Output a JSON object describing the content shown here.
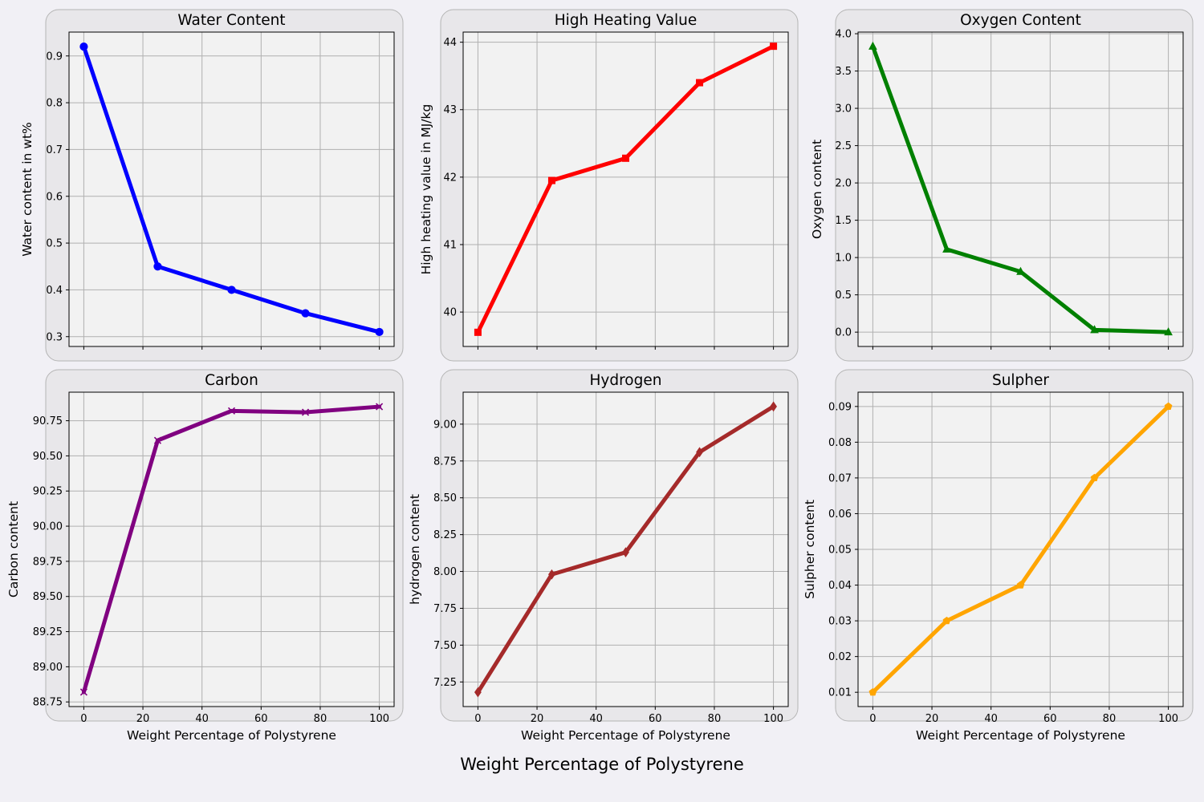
{
  "figure": {
    "suptitle": "Weight Percentage of Polystyrene"
  },
  "chart_data": [
    {
      "type": "line",
      "title": "Water Content",
      "xlabel": "",
      "ylabel": "Water content in wt%",
      "x": [
        0,
        25,
        50,
        75,
        100
      ],
      "series": [
        {
          "values": [
            0.92,
            0.45,
            0.4,
            0.35,
            0.31
          ],
          "color": "#0000ff",
          "marker": "circle"
        }
      ],
      "xlim": [
        -5,
        105
      ],
      "ylim": [
        0.279,
        0.951
      ],
      "xticks": [
        0,
        20,
        40,
        60,
        80,
        100
      ],
      "yticks": [
        0.3,
        0.4,
        0.5,
        0.6,
        0.7,
        0.8,
        0.9
      ],
      "ytick_labels": [
        "0.3",
        "0.4",
        "0.5",
        "0.6",
        "0.7",
        "0.8",
        "0.9"
      ],
      "show_xtick_labels": false,
      "grid": true
    },
    {
      "type": "line",
      "title": "High Heating Value",
      "xlabel": "",
      "ylabel": "High heating value in MJ/kg",
      "x": [
        0,
        25,
        50,
        75,
        100
      ],
      "series": [
        {
          "values": [
            39.7,
            41.95,
            42.28,
            43.4,
            43.94
          ],
          "color": "#ff0000",
          "marker": "square"
        }
      ],
      "xlim": [
        -5,
        105
      ],
      "ylim": [
        39.49,
        44.15
      ],
      "xticks": [
        0,
        20,
        40,
        60,
        80,
        100
      ],
      "yticks": [
        40,
        41,
        42,
        43,
        44
      ],
      "ytick_labels": [
        "40",
        "41",
        "42",
        "43",
        "44"
      ],
      "show_xtick_labels": false,
      "grid": true
    },
    {
      "type": "line",
      "title": "Oxygen Content",
      "xlabel": "",
      "ylabel": "Oxygen content",
      "x": [
        0,
        25,
        50,
        75,
        100
      ],
      "series": [
        {
          "values": [
            3.83,
            1.11,
            0.81,
            0.03,
            0.0
          ],
          "color": "#008000",
          "marker": "triangle"
        }
      ],
      "xlim": [
        -5,
        105
      ],
      "ylim": [
        -0.192,
        4.022
      ],
      "xticks": [
        0,
        20,
        40,
        60,
        80,
        100
      ],
      "yticks": [
        0.0,
        0.5,
        1.0,
        1.5,
        2.0,
        2.5,
        3.0,
        3.5,
        4.0
      ],
      "ytick_labels": [
        "0.0",
        "0.5",
        "1.0",
        "1.5",
        "2.0",
        "2.5",
        "3.0",
        "3.5",
        "4.0"
      ],
      "show_xtick_labels": false,
      "grid": true
    },
    {
      "type": "line",
      "title": "Carbon",
      "xlabel": "Weight Percentage of Polystyrene",
      "ylabel": "Carbon content",
      "x": [
        0,
        25,
        50,
        75,
        100
      ],
      "series": [
        {
          "values": [
            88.82,
            90.61,
            90.82,
            90.81,
            90.85
          ],
          "color": "#800080",
          "marker": "x"
        }
      ],
      "xlim": [
        -5,
        105
      ],
      "ylim": [
        88.717,
        90.953
      ],
      "xticks": [
        0,
        20,
        40,
        60,
        80,
        100
      ],
      "xtick_labels": [
        "0",
        "20",
        "40",
        "60",
        "80",
        "100"
      ],
      "yticks": [
        88.75,
        89.0,
        89.25,
        89.5,
        89.75,
        90.0,
        90.25,
        90.5,
        90.75
      ],
      "ytick_labels": [
        "88.75",
        "89.00",
        "89.25",
        "89.50",
        "89.75",
        "90.00",
        "90.25",
        "90.50",
        "90.75"
      ],
      "show_xtick_labels": true,
      "grid": true
    },
    {
      "type": "line",
      "title": "Hydrogen",
      "xlabel": "Weight Percentage of Polystyrene",
      "ylabel": "hydrogen content",
      "x": [
        0,
        25,
        50,
        75,
        100
      ],
      "series": [
        {
          "values": [
            7.18,
            7.98,
            8.13,
            8.81,
            9.12
          ],
          "color": "#a52a2a",
          "marker": "diamond"
        }
      ],
      "xlim": [
        -5,
        105
      ],
      "ylim": [
        7.083,
        9.217
      ],
      "xticks": [
        0,
        20,
        40,
        60,
        80,
        100
      ],
      "xtick_labels": [
        "0",
        "20",
        "40",
        "60",
        "80",
        "100"
      ],
      "yticks": [
        7.25,
        7.5,
        7.75,
        8.0,
        8.25,
        8.5,
        8.75,
        9.0
      ],
      "ytick_labels": [
        "7.25",
        "7.50",
        "7.75",
        "8.00",
        "8.25",
        "8.50",
        "8.75",
        "9.00"
      ],
      "show_xtick_labels": true,
      "grid": true
    },
    {
      "type": "line",
      "title": "Sulpher",
      "xlabel": "Weight Percentage of Polystyrene",
      "ylabel": "Sulpher content",
      "x": [
        0,
        25,
        50,
        75,
        100
      ],
      "series": [
        {
          "values": [
            0.01,
            0.03,
            0.04,
            0.07,
            0.09
          ],
          "color": "#ffa500",
          "marker": "pentagon"
        }
      ],
      "xlim": [
        -5,
        105
      ],
      "ylim": [
        0.006,
        0.094
      ],
      "xticks": [
        0,
        20,
        40,
        60,
        80,
        100
      ],
      "xtick_labels": [
        "0",
        "20",
        "40",
        "60",
        "80",
        "100"
      ],
      "yticks": [
        0.01,
        0.02,
        0.03,
        0.04,
        0.05,
        0.06,
        0.07,
        0.08,
        0.09
      ],
      "ytick_labels": [
        "0.01",
        "0.02",
        "0.03",
        "0.04",
        "0.05",
        "0.06",
        "0.07",
        "0.08",
        "0.09"
      ],
      "show_xtick_labels": true,
      "grid": true
    }
  ]
}
